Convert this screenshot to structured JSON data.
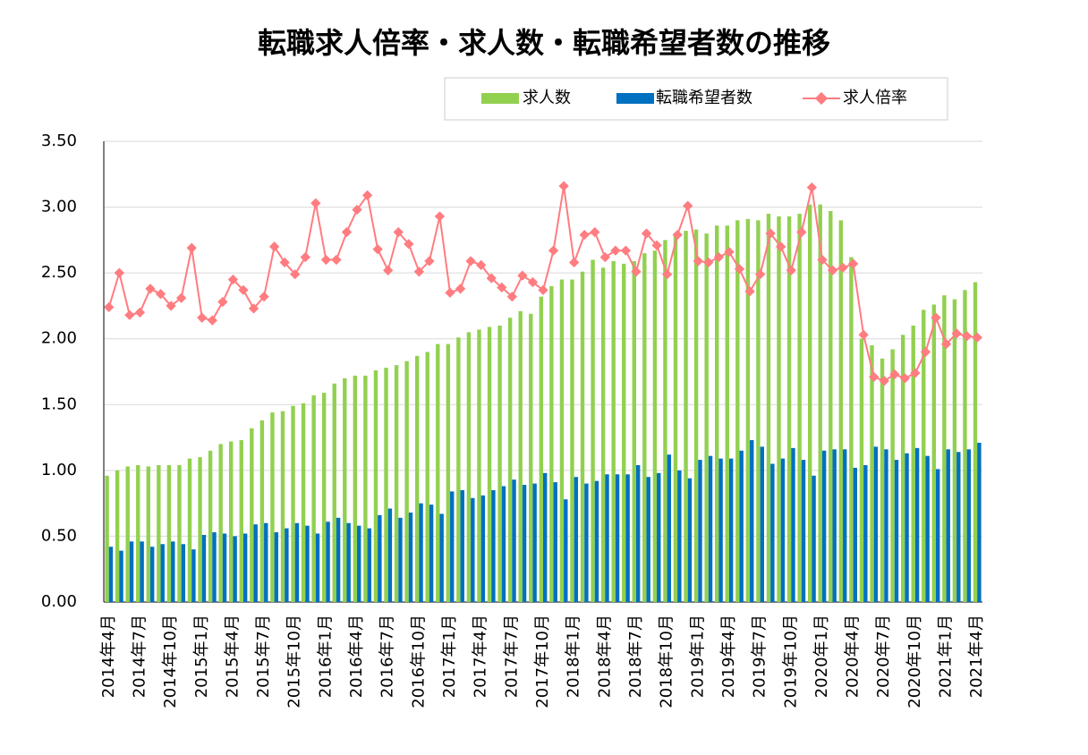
{
  "chart_data": {
    "type": "bar-line",
    "title": "転職求人倍率・求人数・転職希望者数の推移",
    "categories": [
      "2014年4月",
      null,
      null,
      "2014年7月",
      null,
      null,
      "2014年10月",
      null,
      null,
      "2015年1月",
      null,
      null,
      "2015年4月",
      null,
      null,
      "2015年7月",
      null,
      null,
      "2015年10月",
      null,
      null,
      "2016年1月",
      null,
      null,
      "2016年4月",
      null,
      null,
      "2016年7月",
      null,
      null,
      "2016年10月",
      null,
      null,
      "2017年1月",
      null,
      null,
      "2017年4月",
      null,
      null,
      "2017年7月",
      null,
      null,
      "2017年10月",
      null,
      null,
      "2018年1月",
      null,
      null,
      "2018年4月",
      null,
      null,
      "2018年7月",
      null,
      null,
      "2018年10月",
      null,
      null,
      "2019年1月",
      null,
      null,
      "2019年4月",
      null,
      null,
      "2019年7月",
      null,
      null,
      "2019年10月",
      null,
      null,
      "2020年1月",
      null,
      null,
      "2020年4月",
      null,
      null,
      "2020年7月",
      null,
      null,
      "2020年10月",
      null,
      null,
      "2021年1月",
      null,
      null,
      "2021年4月"
    ],
    "series": [
      {
        "name": "求人数",
        "type": "bar",
        "color": "#92d050",
        "values": [
          0.96,
          1.0,
          1.03,
          1.04,
          1.03,
          1.04,
          1.04,
          1.04,
          1.09,
          1.1,
          1.15,
          1.2,
          1.22,
          1.23,
          1.32,
          1.38,
          1.44,
          1.45,
          1.49,
          1.51,
          1.57,
          1.59,
          1.66,
          1.7,
          1.72,
          1.72,
          1.76,
          1.78,
          1.8,
          1.83,
          1.87,
          1.9,
          1.96,
          1.96,
          2.01,
          2.05,
          2.07,
          2.09,
          2.1,
          2.16,
          2.21,
          2.19,
          2.32,
          2.4,
          2.45,
          2.45,
          2.51,
          2.6,
          2.54,
          2.59,
          2.57,
          2.59,
          2.65,
          2.67,
          2.75,
          2.79,
          2.82,
          2.83,
          2.8,
          2.86,
          2.86,
          2.9,
          2.91,
          2.9,
          2.95,
          2.93,
          2.93,
          2.95,
          3.02,
          3.02,
          2.97,
          2.9,
          2.62,
          2.0,
          1.95,
          1.85,
          1.92,
          2.03,
          2.1,
          2.22,
          2.26,
          2.33,
          2.3,
          2.37,
          2.43
        ]
      },
      {
        "name": "転職希望者数",
        "type": "bar",
        "color": "#0070c0",
        "values": [
          0.42,
          0.39,
          0.46,
          0.46,
          0.42,
          0.44,
          0.46,
          0.44,
          0.4,
          0.51,
          0.53,
          0.52,
          0.5,
          0.52,
          0.59,
          0.6,
          0.53,
          0.56,
          0.6,
          0.58,
          0.52,
          0.61,
          0.64,
          0.6,
          0.58,
          0.56,
          0.66,
          0.71,
          0.64,
          0.68,
          0.75,
          0.74,
          0.67,
          0.84,
          0.85,
          0.79,
          0.81,
          0.85,
          0.88,
          0.93,
          0.89,
          0.9,
          0.98,
          0.91,
          0.78,
          0.95,
          0.9,
          0.92,
          0.97,
          0.97,
          0.97,
          1.04,
          0.95,
          0.98,
          1.12,
          1.0,
          0.94,
          1.08,
          1.11,
          1.09,
          1.09,
          1.15,
          1.23,
          1.18,
          1.05,
          1.09,
          1.17,
          1.08,
          0.96,
          1.15,
          1.16,
          1.16,
          1.02,
          1.04,
          1.18,
          1.16,
          1.08,
          1.13,
          1.17,
          1.11,
          1.01,
          1.16,
          1.14,
          1.16,
          1.21
        ]
      },
      {
        "name": "求人倍率",
        "type": "line",
        "color": "#ff7c80",
        "values": [
          2.24,
          2.5,
          2.18,
          2.2,
          2.38,
          2.34,
          2.25,
          2.31,
          2.69,
          2.16,
          2.14,
          2.28,
          2.45,
          2.37,
          2.23,
          2.32,
          2.7,
          2.58,
          2.49,
          2.62,
          3.03,
          2.6,
          2.6,
          2.81,
          2.98,
          3.09,
          2.68,
          2.52,
          2.81,
          2.72,
          2.51,
          2.59,
          2.93,
          2.35,
          2.38,
          2.59,
          2.56,
          2.46,
          2.39,
          2.32,
          2.48,
          2.43,
          2.37,
          2.67,
          3.16,
          2.58,
          2.79,
          2.81,
          2.62,
          2.67,
          2.67,
          2.51,
          2.8,
          2.71,
          2.49,
          2.79,
          3.01,
          2.59,
          2.58,
          2.62,
          2.66,
          2.53,
          2.36,
          2.49,
          2.8,
          2.7,
          2.52,
          2.81,
          3.15,
          2.6,
          2.52,
          2.54,
          2.57,
          2.03,
          1.71,
          1.68,
          1.73,
          1.7,
          1.74,
          1.9,
          2.16,
          1.96,
          2.04,
          2.02,
          2.01
        ]
      }
    ],
    "ylim": [
      0,
      3.5
    ],
    "yticks": [
      {
        "value": 0,
        "label": "0.00"
      },
      {
        "value": 0.5,
        "label": "0.50"
      },
      {
        "value": 1,
        "label": "1.00"
      },
      {
        "value": 1.5,
        "label": "1.50"
      },
      {
        "value": 2,
        "label": "2.00"
      },
      {
        "value": 2.5,
        "label": "2.50"
      },
      {
        "value": 3,
        "label": "3.00"
      },
      {
        "value": 3.5,
        "label": "3.50"
      }
    ],
    "grid": true
  }
}
